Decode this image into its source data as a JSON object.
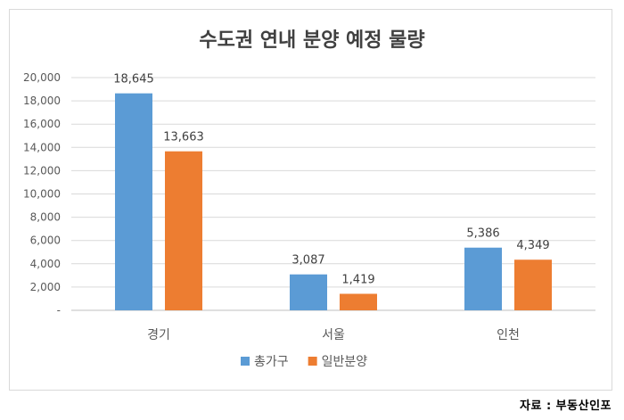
{
  "chart_data": {
    "type": "bar",
    "title": "수도권 연내 분양 예정 물량",
    "categories": [
      "경기",
      "서울",
      "인천"
    ],
    "series": [
      {
        "name": "총가구",
        "values": [
          18645,
          3087,
          5386
        ],
        "labels": [
          "18,645",
          "3,087",
          "5,386"
        ],
        "color": "#5b9bd5"
      },
      {
        "name": "일반분양",
        "values": [
          13663,
          1419,
          4349
        ],
        "labels": [
          "13,663",
          "1,419",
          "4,349"
        ],
        "color": "#ed7d31"
      }
    ],
    "ylim": [
      0,
      20000
    ],
    "yticks": [
      "-",
      "2,000",
      "4,000",
      "6,000",
      "8,000",
      "10,000",
      "12,000",
      "14,000",
      "16,000",
      "18,000",
      "20,000"
    ],
    "xlabel": "",
    "ylabel": "",
    "grid": true,
    "legend_position": "bottom"
  },
  "source_text": "자료 : 부동산인포"
}
